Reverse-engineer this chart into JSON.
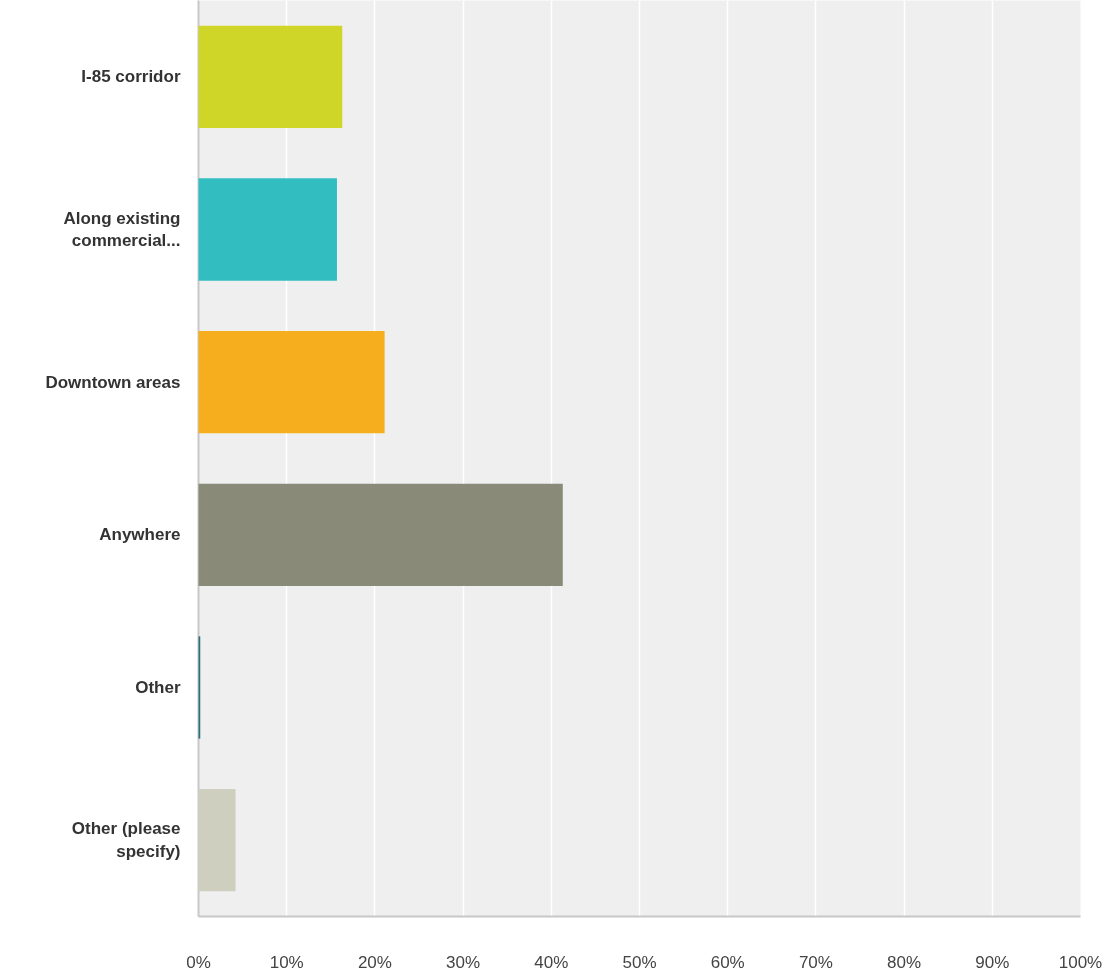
{
  "chart_data": {
    "type": "bar",
    "orientation": "horizontal",
    "categories": [
      "I-85 corridor",
      "Along existing commercial...",
      "Downtown areas",
      "Anywhere",
      "Other",
      "Other (please specify)"
    ],
    "values": [
      16.3,
      15.7,
      21.1,
      41.3,
      0.2,
      4.2
    ],
    "colors": [
      "#cfd628",
      "#32bec0",
      "#f6ae1e",
      "#898a78",
      "#2a6f7a",
      "#cfcfc0"
    ],
    "xlim": [
      0,
      100
    ],
    "xticks": [
      {
        "value": 0,
        "label": "0%"
      },
      {
        "value": 10,
        "label": "10%"
      },
      {
        "value": 20,
        "label": "20%"
      },
      {
        "value": 30,
        "label": "30%"
      },
      {
        "value": 40,
        "label": "40%"
      },
      {
        "value": 50,
        "label": "50%"
      },
      {
        "value": 60,
        "label": "60%"
      },
      {
        "value": 70,
        "label": "70%"
      },
      {
        "value": 80,
        "label": "80%"
      },
      {
        "value": 90,
        "label": "90%"
      },
      {
        "value": 100,
        "label": "100%"
      }
    ],
    "grid": "x"
  }
}
